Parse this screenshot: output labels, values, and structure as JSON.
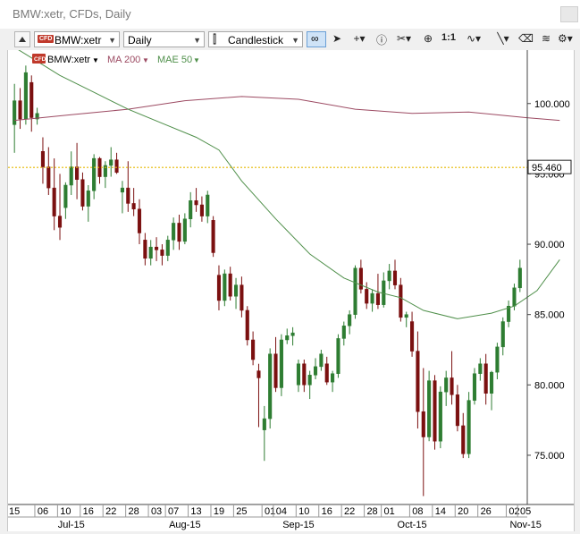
{
  "window": {
    "title": "BMW:xetr, CFDs, Daily"
  },
  "toolbar": {
    "symbol": "BMW:xetr",
    "cfd_badge": "CFD",
    "interval": "Daily",
    "chart_style": "Candlestick",
    "ratio_label": "1:1"
  },
  "legend": {
    "symbol": "BMW:xetr",
    "ma200": "MA 200",
    "mae50": "MAE 50"
  },
  "colors": {
    "up": "#2e7d32",
    "down": "#7b1010",
    "ma200": "#9c4a62",
    "mae50": "#4f8f4a",
    "price_line": "#e6b800"
  },
  "chart_data": {
    "type": "candlestick",
    "y_ticks": [
      "100.000",
      "95.000",
      "90.000",
      "85.000",
      "80.000",
      "75.000"
    ],
    "ylim": [
      71.5,
      103.8
    ],
    "last_price": "95.460",
    "x_labels": [
      {
        "day": "15",
        "label": "15"
      },
      {
        "day": "06",
        "label": "06"
      },
      {
        "day": "10",
        "label": "10"
      },
      {
        "day": "16",
        "label": "16"
      },
      {
        "day": "22",
        "label": "22"
      },
      {
        "day": "28",
        "label": "28"
      },
      {
        "day": "03",
        "label": "03"
      },
      {
        "day": "07",
        "label": "07"
      },
      {
        "day": "13",
        "label": "13"
      },
      {
        "day": "19",
        "label": "19"
      },
      {
        "day": "25",
        "label": "25"
      },
      {
        "day": "01",
        "label": "01"
      },
      {
        "day": "04",
        "label": "04"
      },
      {
        "day": "10b",
        "label": "10"
      },
      {
        "day": "16b",
        "label": "16"
      },
      {
        "day": "22b",
        "label": "22"
      },
      {
        "day": "28b",
        "label": "28"
      },
      {
        "day": "01b",
        "label": "01"
      },
      {
        "day": "08",
        "label": "08"
      },
      {
        "day": "14",
        "label": "14"
      },
      {
        "day": "20",
        "label": "20"
      },
      {
        "day": "26",
        "label": "26"
      },
      {
        "day": "02",
        "label": "02"
      },
      {
        "day": "05",
        "label": "05"
      }
    ],
    "x_label_index": [
      0,
      5,
      9,
      13,
      17,
      21,
      25,
      28,
      32,
      36,
      40,
      45,
      47,
      51,
      55,
      59,
      63,
      66,
      71,
      75,
      79,
      83,
      88,
      90
    ],
    "month_labels": [
      "Jul-15",
      "Aug-15",
      "Sep-15",
      "Oct-15",
      "Nov-15"
    ],
    "month_label_index": [
      10,
      30,
      50,
      70,
      90
    ],
    "candles": [
      [
        98.5,
        101.4,
        96.5,
        100.2
      ],
      [
        100.2,
        101.1,
        98.2,
        98.9
      ],
      [
        98.9,
        102.7,
        98.5,
        102.2
      ],
      [
        101.5,
        102.0,
        98.0,
        99.0
      ],
      [
        98.9,
        99.7,
        98.5,
        99.3
      ],
      [
        96.6,
        97.6,
        94.3,
        95.5
      ],
      [
        95.5,
        96.9,
        93.5,
        94.0
      ],
      [
        94.0,
        96.1,
        91.0,
        92.0
      ],
      [
        92.0,
        95.0,
        90.3,
        91.2
      ],
      [
        92.6,
        94.4,
        91.8,
        94.2
      ],
      [
        94.2,
        96.6,
        93.5,
        95.5
      ],
      [
        95.5,
        97.2,
        93.2,
        94.6
      ],
      [
        94.6,
        95.1,
        92.4,
        92.7
      ],
      [
        92.7,
        94.2,
        91.6,
        93.8
      ],
      [
        93.8,
        96.4,
        93.2,
        96.1
      ],
      [
        96.1,
        96.2,
        94.3,
        94.8
      ],
      [
        94.8,
        95.9,
        94.0,
        95.6
      ],
      [
        95.6,
        96.9,
        94.8,
        96.0
      ],
      [
        96.0,
        96.5,
        95.0,
        95.1
      ],
      [
        93.7,
        94.5,
        92.2,
        94.0
      ],
      [
        94.0,
        95.9,
        92.3,
        92.9
      ],
      [
        92.9,
        94.0,
        92.0,
        92.5
      ],
      [
        92.5,
        93.2,
        90.0,
        90.8
      ],
      [
        90.3,
        90.8,
        88.5,
        89.0
      ],
      [
        89.0,
        90.3,
        88.5,
        89.8
      ],
      [
        89.8,
        90.5,
        88.8,
        89.6
      ],
      [
        89.6,
        90.0,
        88.5,
        89.2
      ],
      [
        89.2,
        90.6,
        88.8,
        90.3
      ],
      [
        90.3,
        91.9,
        89.6,
        91.5
      ],
      [
        91.5,
        92.1,
        89.6,
        90.2
      ],
      [
        90.2,
        92.2,
        90.0,
        91.8
      ],
      [
        91.8,
        93.7,
        91.2,
        93.1
      ],
      [
        93.1,
        94.0,
        92.3,
        92.8
      ],
      [
        92.8,
        93.4,
        91.6,
        92.0
      ],
      [
        92.0,
        93.8,
        91.5,
        93.5
      ],
      [
        91.7,
        92.0,
        89.1,
        89.4
      ],
      [
        87.8,
        88.5,
        85.3,
        86.0
      ],
      [
        86.0,
        88.2,
        85.6,
        87.9
      ],
      [
        87.9,
        88.4,
        86.0,
        86.3
      ],
      [
        86.3,
        87.6,
        85.4,
        87.1
      ],
      [
        87.1,
        87.7,
        84.8,
        85.3
      ],
      [
        85.3,
        85.6,
        82.8,
        83.2
      ],
      [
        83.2,
        83.8,
        81.4,
        81.8
      ],
      [
        81.0,
        81.5,
        77.0,
        80.5
      ],
      [
        76.8,
        78.5,
        74.6,
        77.6
      ],
      [
        77.6,
        82.6,
        76.9,
        82.2
      ],
      [
        82.2,
        83.4,
        79.5,
        79.8
      ],
      [
        79.8,
        83.6,
        79.2,
        83.2
      ],
      [
        83.2,
        84.0,
        82.9,
        83.5
      ],
      [
        83.5,
        84.1,
        82.8,
        83.7
      ],
      [
        80.0,
        81.8,
        79.5,
        81.5
      ],
      [
        81.5,
        81.8,
        79.5,
        80.0
      ],
      [
        80.0,
        81.0,
        79.0,
        80.7
      ],
      [
        80.7,
        81.9,
        80.4,
        81.3
      ],
      [
        81.3,
        82.5,
        81.0,
        82.2
      ],
      [
        81.5,
        82.0,
        80.0,
        80.2
      ],
      [
        80.2,
        81.0,
        79.5,
        80.8
      ],
      [
        80.8,
        83.6,
        80.5,
        83.3
      ],
      [
        83.3,
        84.5,
        82.8,
        84.2
      ],
      [
        84.2,
        85.3,
        83.6,
        85.0
      ],
      [
        85.0,
        88.5,
        84.7,
        88.3
      ],
      [
        88.3,
        88.9,
        86.5,
        86.8
      ],
      [
        86.8,
        87.3,
        85.4,
        85.8
      ],
      [
        85.8,
        86.8,
        85.2,
        86.5
      ],
      [
        86.5,
        87.9,
        85.4,
        85.7
      ],
      [
        85.7,
        88.0,
        85.5,
        87.4
      ],
      [
        87.4,
        88.6,
        86.8,
        88.1
      ],
      [
        88.1,
        88.9,
        86.8,
        87.1
      ],
      [
        87.1,
        87.6,
        84.5,
        84.8
      ],
      [
        84.8,
        85.2,
        84.1,
        85.0
      ],
      [
        84.5,
        85.2,
        82.0,
        82.4
      ],
      [
        82.4,
        83.8,
        76.9,
        78.1
      ],
      [
        78.1,
        81.2,
        72.1,
        76.3
      ],
      [
        76.3,
        81.0,
        76.0,
        80.3
      ],
      [
        80.3,
        80.7,
        75.4,
        76.0
      ],
      [
        76.0,
        79.9,
        75.5,
        79.5
      ],
      [
        79.5,
        81.0,
        78.5,
        80.5
      ],
      [
        80.5,
        82.4,
        78.6,
        79.3
      ],
      [
        79.3,
        80.0,
        76.7,
        77.1
      ],
      [
        77.1,
        78.0,
        74.8,
        75.1
      ],
      [
        75.1,
        79.5,
        74.8,
        78.9
      ],
      [
        78.9,
        81.2,
        78.6,
        80.8
      ],
      [
        80.8,
        81.9,
        80.3,
        81.5
      ],
      [
        81.5,
        82.2,
        78.6,
        79.4
      ],
      [
        79.4,
        81.0,
        78.2,
        80.9
      ],
      [
        80.9,
        83.0,
        80.4,
        82.7
      ],
      [
        82.7,
        84.8,
        82.1,
        84.5
      ],
      [
        84.5,
        86.0,
        84.1,
        85.6
      ],
      [
        85.6,
        87.2,
        85.3,
        86.9
      ],
      [
        86.9,
        88.9,
        86.6,
        88.3
      ]
    ],
    "ma200_points": [
      [
        0,
        98.8
      ],
      [
        10,
        99.2
      ],
      [
        20,
        99.6
      ],
      [
        30,
        100.2
      ],
      [
        40,
        100.5
      ],
      [
        50,
        100.3
      ],
      [
        60,
        99.6
      ],
      [
        70,
        99.3
      ],
      [
        80,
        99.4
      ],
      [
        90,
        99.0
      ],
      [
        96,
        98.8
      ]
    ],
    "mae50_points": [
      [
        0,
        104.0
      ],
      [
        4,
        103.0
      ],
      [
        8,
        102.0
      ],
      [
        14,
        100.8
      ],
      [
        20,
        99.6
      ],
      [
        26,
        98.6
      ],
      [
        32,
        97.6
      ],
      [
        36,
        96.7
      ],
      [
        40,
        94.5
      ],
      [
        46,
        91.8
      ],
      [
        52,
        89.3
      ],
      [
        58,
        87.6
      ],
      [
        64,
        86.6
      ],
      [
        68,
        86.2
      ],
      [
        72,
        85.3
      ],
      [
        78,
        84.7
      ],
      [
        84,
        85.1
      ],
      [
        88,
        85.6
      ],
      [
        92,
        86.7
      ],
      [
        96,
        88.9
      ]
    ]
  }
}
